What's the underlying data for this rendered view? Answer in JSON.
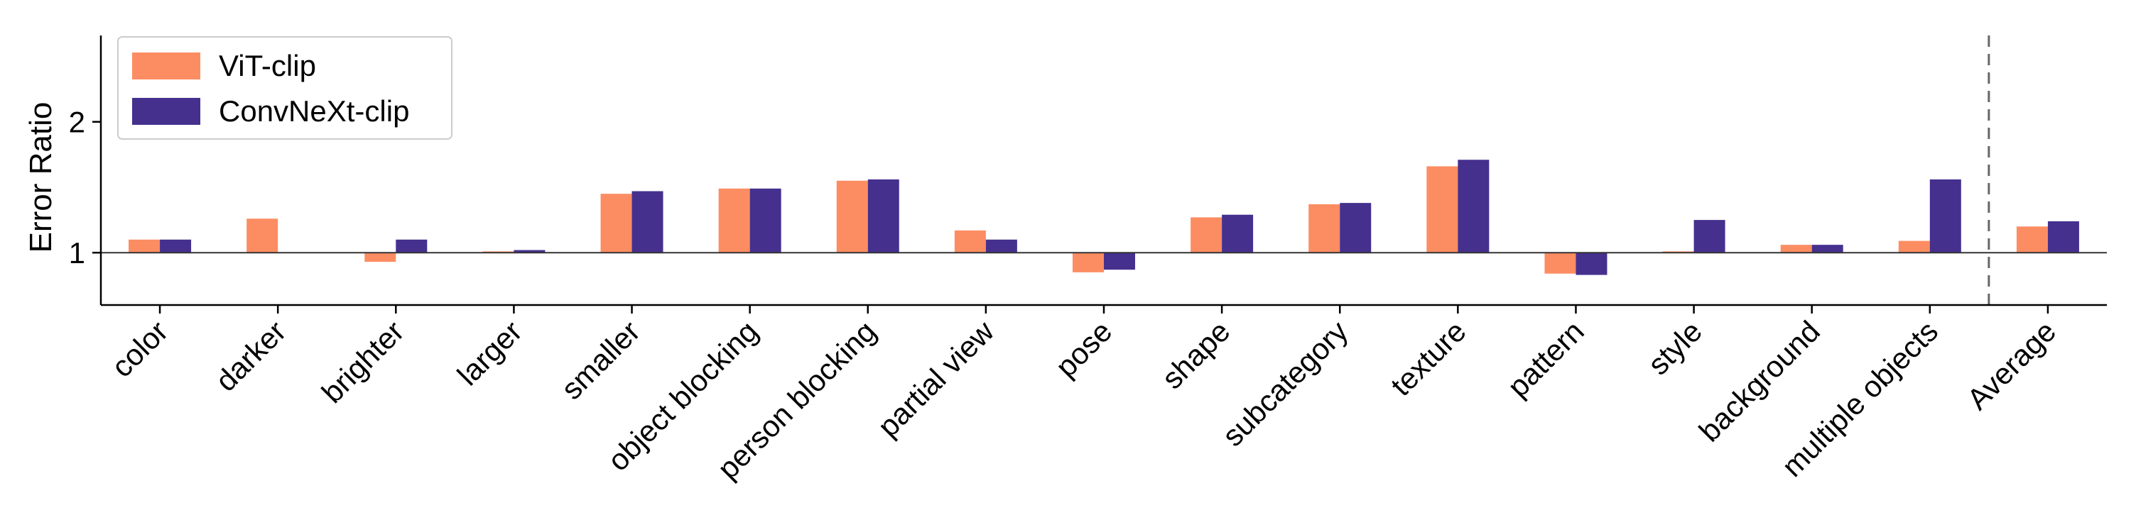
{
  "chart_data": {
    "type": "bar",
    "ylabel": "Error Ratio",
    "ylim": [
      0.6,
      2.66
    ],
    "yticks": [
      1,
      2
    ],
    "reference_line": 1,
    "grid": false,
    "legend_position": "top-left",
    "categories": [
      "color",
      "darker",
      "brighter",
      "larger",
      "smaller",
      "object blocking",
      "person blocking",
      "partial view",
      "pose",
      "shape",
      "subcategory",
      "texture",
      "pattern",
      "style",
      "background",
      "multiple objects",
      "Average"
    ],
    "series": [
      {
        "name": "ViT-clip",
        "color": "#fc8d62",
        "values": [
          1.1,
          1.26,
          0.93,
          1.01,
          1.45,
          1.49,
          1.55,
          1.17,
          0.85,
          1.27,
          1.37,
          1.66,
          0.84,
          1.01,
          1.06,
          1.09,
          1.2
        ]
      },
      {
        "name": "ConvNeXt-clip",
        "color": "#45308e",
        "values": [
          1.1,
          null,
          1.1,
          1.02,
          1.47,
          1.49,
          1.56,
          1.1,
          0.87,
          1.29,
          1.38,
          1.71,
          0.83,
          1.25,
          1.06,
          1.56,
          1.24
        ]
      }
    ],
    "separator_after": "multiple objects"
  }
}
